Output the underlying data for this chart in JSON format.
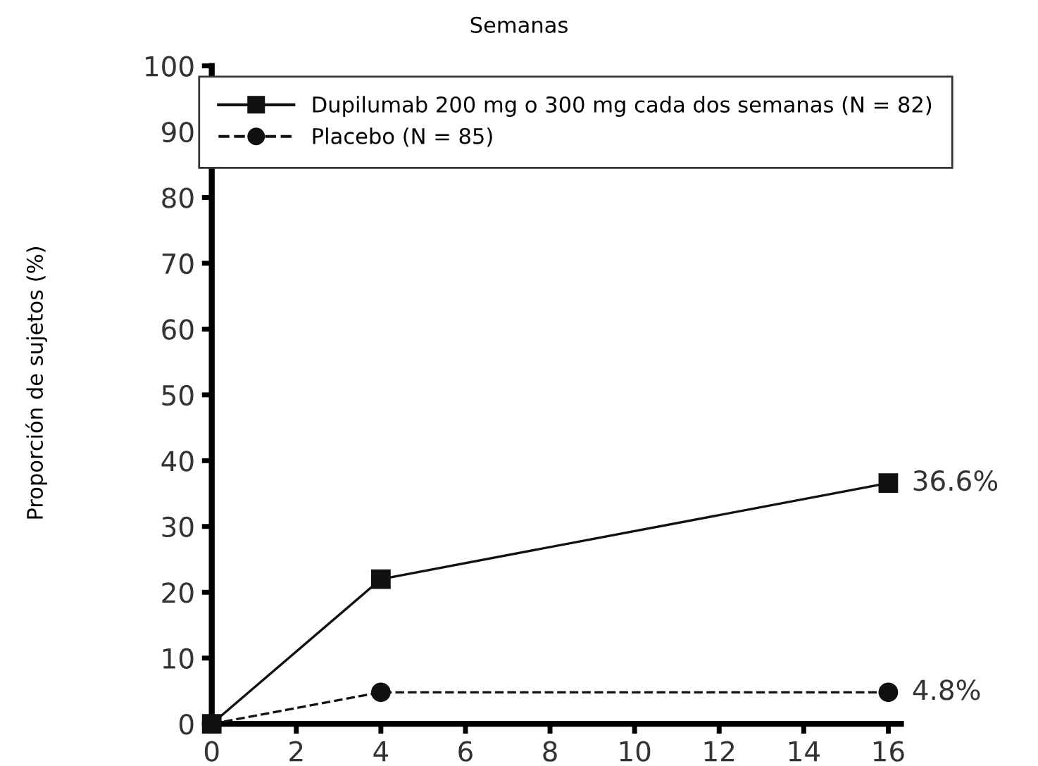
{
  "chart_data": {
    "type": "line",
    "xlabel": "Semanas",
    "ylabel": "Proporción de sujetos (%)",
    "x": [
      0,
      4,
      16
    ],
    "series": [
      {
        "name": "Dupilumab 200 mg o 300 mg cada dos semanas (N = 82)",
        "color": "#111111",
        "values": [
          0,
          22,
          36.6
        ],
        "marker": "square",
        "line_style": "solid",
        "value_labels": [
          null,
          null,
          "36.6%"
        ]
      },
      {
        "name": "Placebo (N = 85)",
        "color": "#111111",
        "values": [
          0,
          4.8,
          4.8
        ],
        "marker": "circle",
        "line_style": "dashed",
        "value_labels": [
          null,
          null,
          "4.8%"
        ]
      }
    ],
    "xlim": [
      0,
      16.3
    ],
    "xticks": [
      0,
      2,
      4,
      6,
      8,
      10,
      12,
      14,
      16
    ],
    "ylim": [
      0,
      100
    ],
    "yticks": [
      0,
      10,
      20,
      30,
      40,
      50,
      60,
      70,
      80,
      90,
      100
    ],
    "grid": false,
    "legend": "top right"
  }
}
